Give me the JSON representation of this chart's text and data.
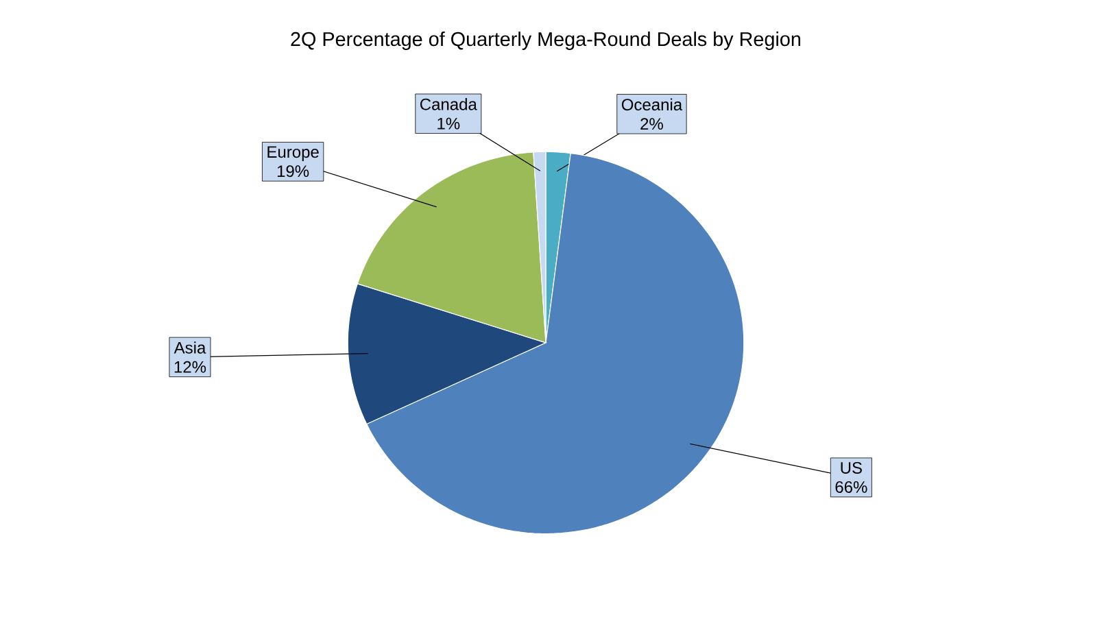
{
  "chart_data": {
    "type": "pie",
    "title": "2Q Percentage of Quarterly Mega-Round Deals by Region",
    "categories": [
      "Oceania",
      "US",
      "Asia",
      "Europe",
      "Canada"
    ],
    "values": [
      2,
      66,
      12,
      19,
      1
    ],
    "value_labels": [
      "2%",
      "66%",
      "12%",
      "19%",
      "1%"
    ],
    "colors": [
      "#4bacc6",
      "#4f81bd",
      "#1f497d",
      "#9bbb59",
      "#c6d9f1"
    ]
  }
}
